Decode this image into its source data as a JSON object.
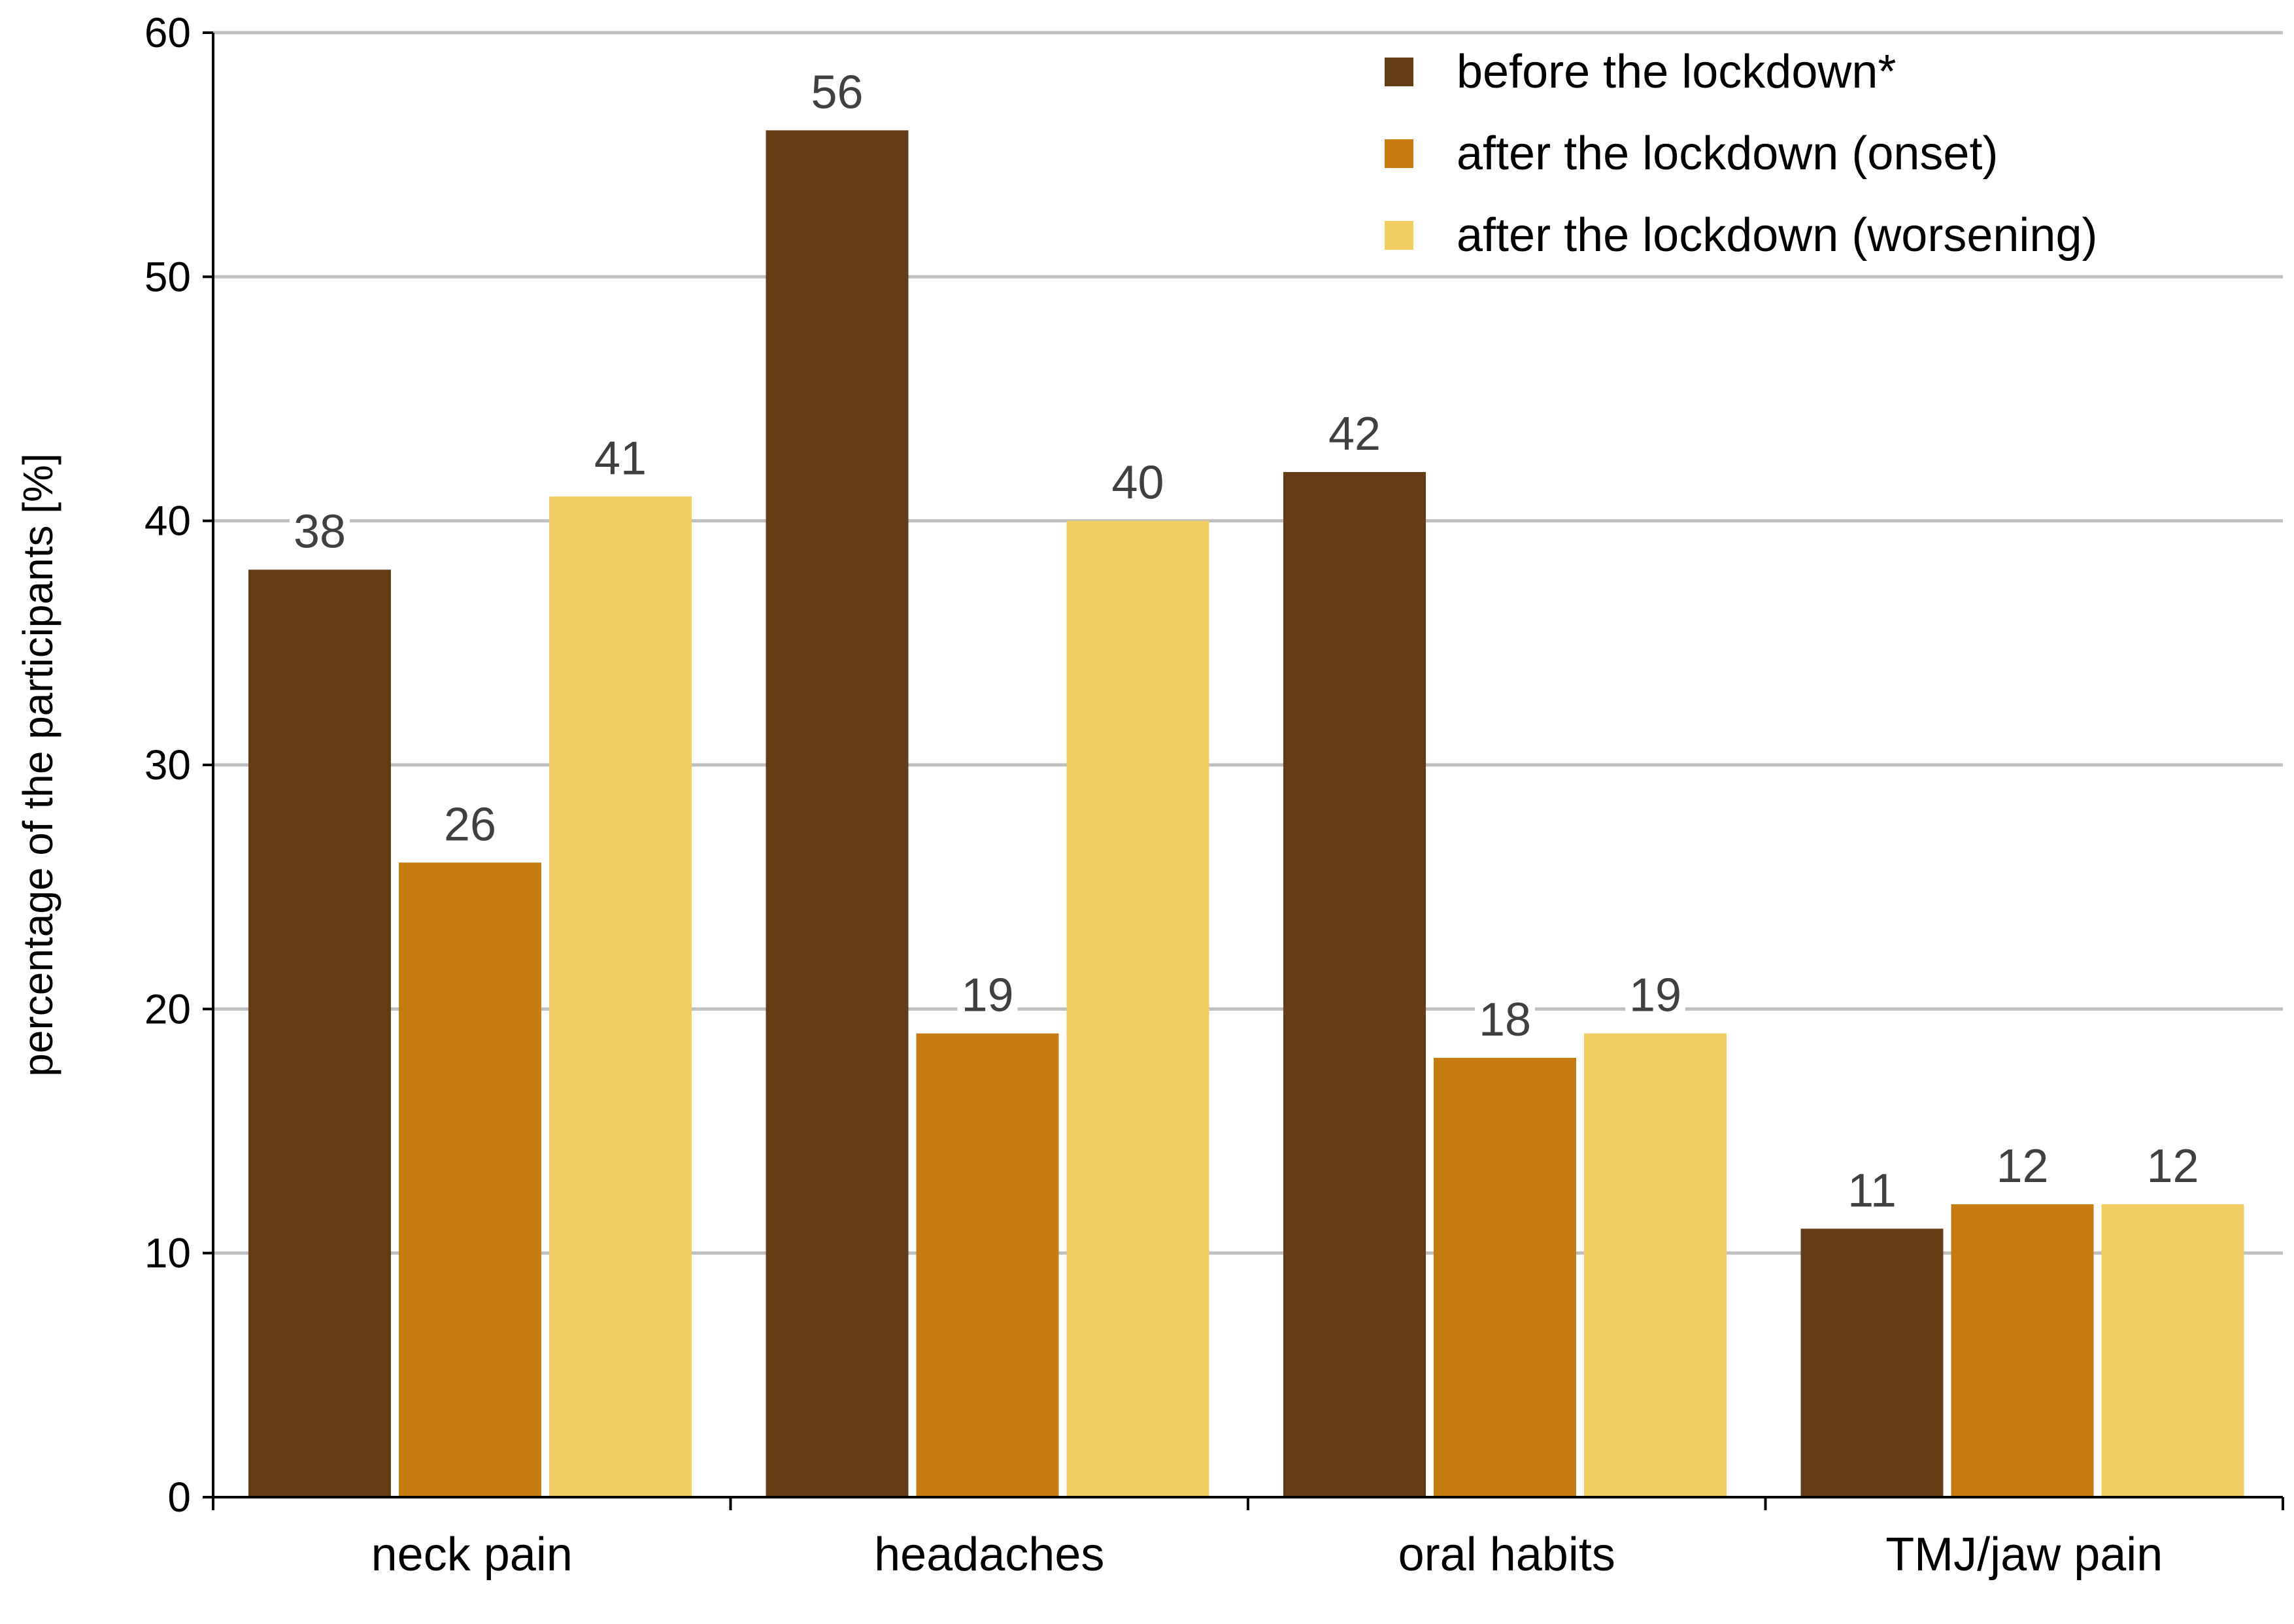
{
  "chart_data": {
    "type": "bar",
    "categories": [
      "neck pain",
      "headaches",
      "oral habits",
      "TMJ/jaw pain"
    ],
    "series": [
      {
        "name": "before the lockdown*",
        "color": "#633c15",
        "values": [
          38,
          56,
          42,
          11
        ]
      },
      {
        "name": "after the lockdown (onset)",
        "color": "#c77c11",
        "values": [
          26,
          19,
          18,
          12
        ]
      },
      {
        "name": "after the lockdown (worsening)",
        "color": "#f2ce62",
        "values": [
          41,
          40,
          19,
          12
        ]
      }
    ],
    "title": "",
    "xlabel": "",
    "ylabel": "percentage of the participants [%]",
    "ylim": [
      0,
      60
    ],
    "yticks": [
      0,
      10,
      20,
      30,
      40,
      50,
      60
    ],
    "grid": true,
    "legend_position": "top-right",
    "gridline_color": "#bfbfbf",
    "data_label_color": "#404040"
  }
}
